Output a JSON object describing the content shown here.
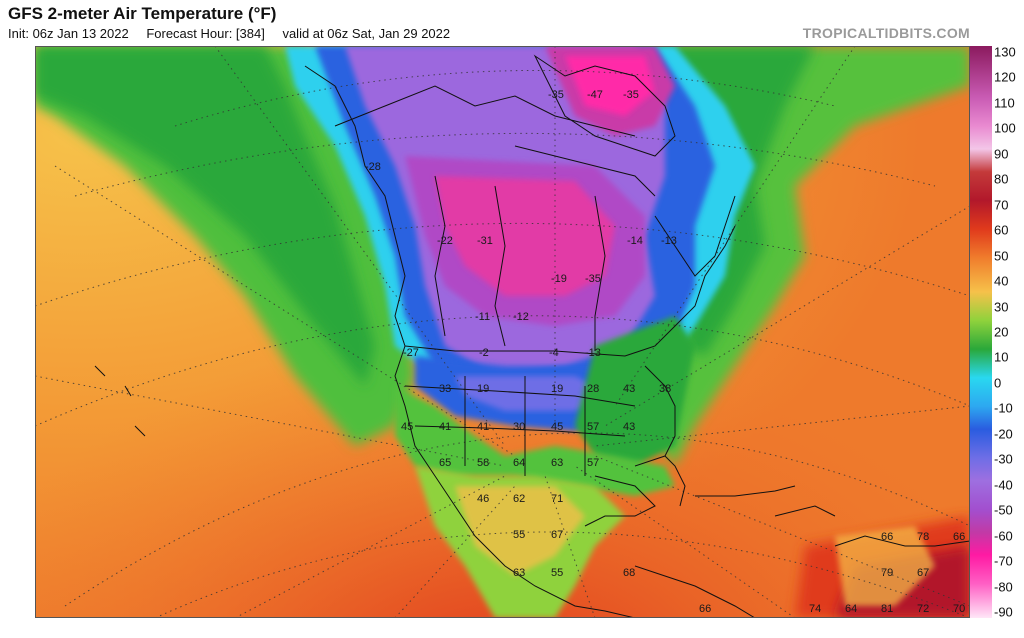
{
  "header": {
    "title": "GFS 2-meter Air Temperature (°F)",
    "init": "Init: 06z Jan 13 2022",
    "forecast_hour": "Forecast Hour: [384]",
    "valid": "valid at 06z Sat, Jan 29 2022",
    "brand": "TROPICALTIDBITS.COM"
  },
  "colorbar": {
    "ticks": [
      "130",
      "120",
      "110",
      "100",
      "90",
      "80",
      "70",
      "60",
      "50",
      "40",
      "30",
      "20",
      "10",
      "0",
      "-10",
      "-20",
      "-30",
      "-40",
      "-50",
      "-60",
      "-70",
      "-80",
      "-90"
    ],
    "colors": {
      "t130": "#8b1a5e",
      "t110": "#e98ad0",
      "t90": "#b2182b",
      "t80": "#e03a1c",
      "t70": "#f07c2c",
      "t60": "#f6c14a",
      "t50": "#8fd23c",
      "t40": "#2aa83a",
      "t30": "#29d8f0",
      "t20": "#2da8f0",
      "t10": "#2a5ce0",
      "t0": "#6e6ee6",
      "tm10": "#9e6fe0",
      "tm20": "#a24fcf",
      "tm30": "#c13aa6",
      "tm40": "#ff1aa3",
      "tm60": "#ff5fc4",
      "tm90": "#ffe6f7"
    }
  },
  "map_labels": [
    {
      "text": "-35"
    },
    {
      "text": "-47"
    },
    {
      "text": "-35"
    },
    {
      "text": "-28"
    },
    {
      "text": "-22"
    },
    {
      "text": "-31"
    },
    {
      "text": "-19"
    },
    {
      "text": "-35"
    },
    {
      "text": "-14"
    },
    {
      "text": "-13"
    },
    {
      "text": "-11"
    },
    {
      "text": "-12"
    },
    {
      "text": "-27"
    },
    {
      "text": "-2"
    },
    {
      "text": "-4"
    },
    {
      "text": "-13"
    },
    {
      "text": "33"
    },
    {
      "text": "19"
    },
    {
      "text": "19"
    },
    {
      "text": "28"
    },
    {
      "text": "43"
    },
    {
      "text": "38"
    },
    {
      "text": "45"
    },
    {
      "text": "41"
    },
    {
      "text": "41"
    },
    {
      "text": "30"
    },
    {
      "text": "45"
    },
    {
      "text": "57"
    },
    {
      "text": "43"
    },
    {
      "text": "65"
    },
    {
      "text": "58"
    },
    {
      "text": "64"
    },
    {
      "text": "63"
    },
    {
      "text": "57"
    },
    {
      "text": "46"
    },
    {
      "text": "62"
    },
    {
      "text": "71"
    },
    {
      "text": "55"
    },
    {
      "text": "67"
    },
    {
      "text": "63"
    },
    {
      "text": "55"
    },
    {
      "text": "68"
    },
    {
      "text": "66"
    },
    {
      "text": "78"
    },
    {
      "text": "66"
    },
    {
      "text": "79"
    },
    {
      "text": "67"
    },
    {
      "text": "74"
    },
    {
      "text": "64"
    },
    {
      "text": "81"
    },
    {
      "text": "72"
    },
    {
      "text": "70"
    },
    {
      "text": "66"
    }
  ]
}
